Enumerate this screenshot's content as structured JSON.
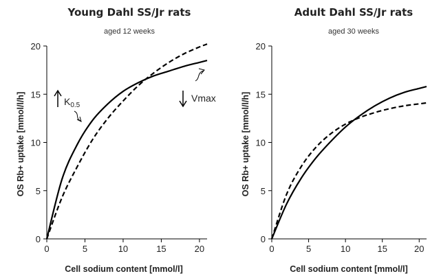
{
  "colors": {
    "ink": "#000000",
    "text": "#222222"
  },
  "chart_data": [
    {
      "type": "line",
      "title": "Young Dahl SS/Jr rats",
      "subtitle": "aged 12 weeks",
      "xlabel": "Cell sodium content [mmol/l]",
      "ylabel": "OS Rb+ uptake [mmol/l/h]",
      "xlim": [
        0,
        21
      ],
      "ylim": [
        0,
        20
      ],
      "x_ticks": [
        "0",
        "5",
        "10",
        "15",
        "20"
      ],
      "y_ticks": [
        "0",
        "5",
        "10",
        "15",
        "20"
      ],
      "grid": false,
      "series": [
        {
          "style": "solid",
          "x": [
            0,
            2,
            4,
            6,
            8,
            10,
            12,
            14,
            16,
            18,
            20,
            21
          ],
          "y": [
            0,
            6.2,
            9.8,
            12.3,
            14.0,
            15.3,
            16.2,
            16.9,
            17.4,
            17.9,
            18.3,
            18.5
          ]
        },
        {
          "style": "dashed",
          "x": [
            0,
            2,
            4,
            6,
            8,
            10,
            12,
            14,
            16,
            18,
            20,
            21
          ],
          "y": [
            0,
            4.3,
            7.5,
            10.3,
            12.5,
            14.3,
            15.9,
            17.2,
            18.3,
            19.2,
            19.9,
            20.2
          ]
        }
      ],
      "annotations": [
        {
          "arrow": "up",
          "text": "K",
          "sub": "0.5"
        },
        {
          "arrow": "down",
          "text": "Vmax"
        }
      ]
    },
    {
      "type": "line",
      "title": "Adult Dahl SS/Jr rats",
      "subtitle": "aged 30 weeks",
      "xlabel": "Cell sodium content [mmol/l]",
      "ylabel": "OS Rb+ uptake [mmol/l/h]",
      "xlim": [
        0,
        21
      ],
      "ylim": [
        0,
        20
      ],
      "x_ticks": [
        "0",
        "5",
        "10",
        "15",
        "20"
      ],
      "y_ticks": [
        "0",
        "5",
        "10",
        "15",
        "20"
      ],
      "grid": false,
      "series": [
        {
          "style": "solid",
          "x": [
            0,
            2,
            4,
            6,
            8,
            10,
            12,
            14,
            16,
            18,
            20,
            21
          ],
          "y": [
            0,
            3.6,
            6.3,
            8.4,
            10.1,
            11.6,
            12.8,
            13.8,
            14.6,
            15.2,
            15.6,
            15.8
          ]
        },
        {
          "style": "dashed",
          "x": [
            0,
            2,
            4,
            6,
            8,
            10,
            12,
            14,
            16,
            18,
            20,
            21
          ],
          "y": [
            0,
            4.6,
            7.5,
            9.5,
            10.9,
            11.9,
            12.6,
            13.1,
            13.5,
            13.8,
            14.0,
            14.1
          ]
        }
      ],
      "annotations": []
    }
  ]
}
